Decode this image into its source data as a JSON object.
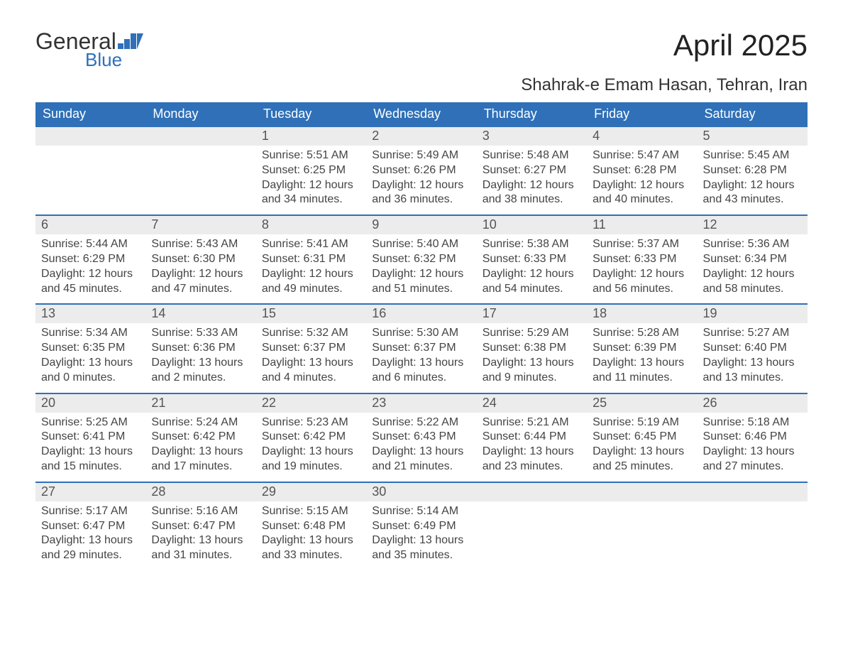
{
  "brand": {
    "general": "General",
    "blue": "Blue"
  },
  "title": "April 2025",
  "subtitle": "Shahrak-e Emam Hasan, Tehran, Iran",
  "colors": {
    "header_bg": "#2f70b8",
    "header_text": "#ffffff",
    "daynum_bg": "#ececec",
    "text": "#444444",
    "border": "#2f70b8"
  },
  "typography": {
    "title_fontsize": 42,
    "subtitle_fontsize": 24,
    "dayheader_fontsize": 18,
    "body_fontsize": 16
  },
  "day_names": [
    "Sunday",
    "Monday",
    "Tuesday",
    "Wednesday",
    "Thursday",
    "Friday",
    "Saturday"
  ],
  "weeks": [
    [
      {
        "n": "",
        "sunrise": "",
        "sunset": "",
        "daylight1": "",
        "daylight2": ""
      },
      {
        "n": "",
        "sunrise": "",
        "sunset": "",
        "daylight1": "",
        "daylight2": ""
      },
      {
        "n": "1",
        "sunrise": "Sunrise: 5:51 AM",
        "sunset": "Sunset: 6:25 PM",
        "daylight1": "Daylight: 12 hours",
        "daylight2": "and 34 minutes."
      },
      {
        "n": "2",
        "sunrise": "Sunrise: 5:49 AM",
        "sunset": "Sunset: 6:26 PM",
        "daylight1": "Daylight: 12 hours",
        "daylight2": "and 36 minutes."
      },
      {
        "n": "3",
        "sunrise": "Sunrise: 5:48 AM",
        "sunset": "Sunset: 6:27 PM",
        "daylight1": "Daylight: 12 hours",
        "daylight2": "and 38 minutes."
      },
      {
        "n": "4",
        "sunrise": "Sunrise: 5:47 AM",
        "sunset": "Sunset: 6:28 PM",
        "daylight1": "Daylight: 12 hours",
        "daylight2": "and 40 minutes."
      },
      {
        "n": "5",
        "sunrise": "Sunrise: 5:45 AM",
        "sunset": "Sunset: 6:28 PM",
        "daylight1": "Daylight: 12 hours",
        "daylight2": "and 43 minutes."
      }
    ],
    [
      {
        "n": "6",
        "sunrise": "Sunrise: 5:44 AM",
        "sunset": "Sunset: 6:29 PM",
        "daylight1": "Daylight: 12 hours",
        "daylight2": "and 45 minutes."
      },
      {
        "n": "7",
        "sunrise": "Sunrise: 5:43 AM",
        "sunset": "Sunset: 6:30 PM",
        "daylight1": "Daylight: 12 hours",
        "daylight2": "and 47 minutes."
      },
      {
        "n": "8",
        "sunrise": "Sunrise: 5:41 AM",
        "sunset": "Sunset: 6:31 PM",
        "daylight1": "Daylight: 12 hours",
        "daylight2": "and 49 minutes."
      },
      {
        "n": "9",
        "sunrise": "Sunrise: 5:40 AM",
        "sunset": "Sunset: 6:32 PM",
        "daylight1": "Daylight: 12 hours",
        "daylight2": "and 51 minutes."
      },
      {
        "n": "10",
        "sunrise": "Sunrise: 5:38 AM",
        "sunset": "Sunset: 6:33 PM",
        "daylight1": "Daylight: 12 hours",
        "daylight2": "and 54 minutes."
      },
      {
        "n": "11",
        "sunrise": "Sunrise: 5:37 AM",
        "sunset": "Sunset: 6:33 PM",
        "daylight1": "Daylight: 12 hours",
        "daylight2": "and 56 minutes."
      },
      {
        "n": "12",
        "sunrise": "Sunrise: 5:36 AM",
        "sunset": "Sunset: 6:34 PM",
        "daylight1": "Daylight: 12 hours",
        "daylight2": "and 58 minutes."
      }
    ],
    [
      {
        "n": "13",
        "sunrise": "Sunrise: 5:34 AM",
        "sunset": "Sunset: 6:35 PM",
        "daylight1": "Daylight: 13 hours",
        "daylight2": "and 0 minutes."
      },
      {
        "n": "14",
        "sunrise": "Sunrise: 5:33 AM",
        "sunset": "Sunset: 6:36 PM",
        "daylight1": "Daylight: 13 hours",
        "daylight2": "and 2 minutes."
      },
      {
        "n": "15",
        "sunrise": "Sunrise: 5:32 AM",
        "sunset": "Sunset: 6:37 PM",
        "daylight1": "Daylight: 13 hours",
        "daylight2": "and 4 minutes."
      },
      {
        "n": "16",
        "sunrise": "Sunrise: 5:30 AM",
        "sunset": "Sunset: 6:37 PM",
        "daylight1": "Daylight: 13 hours",
        "daylight2": "and 6 minutes."
      },
      {
        "n": "17",
        "sunrise": "Sunrise: 5:29 AM",
        "sunset": "Sunset: 6:38 PM",
        "daylight1": "Daylight: 13 hours",
        "daylight2": "and 9 minutes."
      },
      {
        "n": "18",
        "sunrise": "Sunrise: 5:28 AM",
        "sunset": "Sunset: 6:39 PM",
        "daylight1": "Daylight: 13 hours",
        "daylight2": "and 11 minutes."
      },
      {
        "n": "19",
        "sunrise": "Sunrise: 5:27 AM",
        "sunset": "Sunset: 6:40 PM",
        "daylight1": "Daylight: 13 hours",
        "daylight2": "and 13 minutes."
      }
    ],
    [
      {
        "n": "20",
        "sunrise": "Sunrise: 5:25 AM",
        "sunset": "Sunset: 6:41 PM",
        "daylight1": "Daylight: 13 hours",
        "daylight2": "and 15 minutes."
      },
      {
        "n": "21",
        "sunrise": "Sunrise: 5:24 AM",
        "sunset": "Sunset: 6:42 PM",
        "daylight1": "Daylight: 13 hours",
        "daylight2": "and 17 minutes."
      },
      {
        "n": "22",
        "sunrise": "Sunrise: 5:23 AM",
        "sunset": "Sunset: 6:42 PM",
        "daylight1": "Daylight: 13 hours",
        "daylight2": "and 19 minutes."
      },
      {
        "n": "23",
        "sunrise": "Sunrise: 5:22 AM",
        "sunset": "Sunset: 6:43 PM",
        "daylight1": "Daylight: 13 hours",
        "daylight2": "and 21 minutes."
      },
      {
        "n": "24",
        "sunrise": "Sunrise: 5:21 AM",
        "sunset": "Sunset: 6:44 PM",
        "daylight1": "Daylight: 13 hours",
        "daylight2": "and 23 minutes."
      },
      {
        "n": "25",
        "sunrise": "Sunrise: 5:19 AM",
        "sunset": "Sunset: 6:45 PM",
        "daylight1": "Daylight: 13 hours",
        "daylight2": "and 25 minutes."
      },
      {
        "n": "26",
        "sunrise": "Sunrise: 5:18 AM",
        "sunset": "Sunset: 6:46 PM",
        "daylight1": "Daylight: 13 hours",
        "daylight2": "and 27 minutes."
      }
    ],
    [
      {
        "n": "27",
        "sunrise": "Sunrise: 5:17 AM",
        "sunset": "Sunset: 6:47 PM",
        "daylight1": "Daylight: 13 hours",
        "daylight2": "and 29 minutes."
      },
      {
        "n": "28",
        "sunrise": "Sunrise: 5:16 AM",
        "sunset": "Sunset: 6:47 PM",
        "daylight1": "Daylight: 13 hours",
        "daylight2": "and 31 minutes."
      },
      {
        "n": "29",
        "sunrise": "Sunrise: 5:15 AM",
        "sunset": "Sunset: 6:48 PM",
        "daylight1": "Daylight: 13 hours",
        "daylight2": "and 33 minutes."
      },
      {
        "n": "30",
        "sunrise": "Sunrise: 5:14 AM",
        "sunset": "Sunset: 6:49 PM",
        "daylight1": "Daylight: 13 hours",
        "daylight2": "and 35 minutes."
      },
      {
        "n": "",
        "sunrise": "",
        "sunset": "",
        "daylight1": "",
        "daylight2": ""
      },
      {
        "n": "",
        "sunrise": "",
        "sunset": "",
        "daylight1": "",
        "daylight2": ""
      },
      {
        "n": "",
        "sunrise": "",
        "sunset": "",
        "daylight1": "",
        "daylight2": ""
      }
    ]
  ]
}
